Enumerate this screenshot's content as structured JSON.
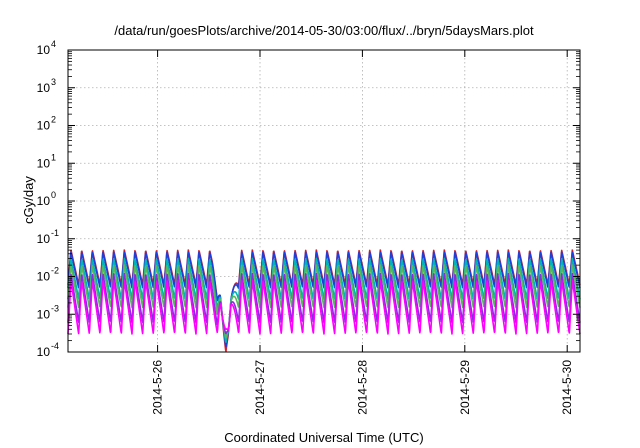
{
  "chart_data": {
    "type": "line",
    "title": "/data/run/goesPlots/archive/2014-05-30/03:00/flux/../bryn/5daysMars.plot",
    "xlabel": "Coordinated Universal Time (UTC)",
    "ylabel": "cGy/day",
    "yscale": "log",
    "ylim": [
      0.0001,
      10000
    ],
    "y_ticks": [
      {
        "value": 0.0001,
        "base": "10",
        "exp": "-4"
      },
      {
        "value": 0.001,
        "base": "10",
        "exp": "-3"
      },
      {
        "value": 0.01,
        "base": "10",
        "exp": "-2"
      },
      {
        "value": 0.1,
        "base": "10",
        "exp": "-1"
      },
      {
        "value": 1,
        "base": "10",
        "exp": "0"
      },
      {
        "value": 10,
        "base": "10",
        "exp": "1"
      },
      {
        "value": 100,
        "base": "10",
        "exp": "2"
      },
      {
        "value": 1000,
        "base": "10",
        "exp": "3"
      },
      {
        "value": 10000,
        "base": "10",
        "exp": "4"
      }
    ],
    "xlim": [
      "2014-05-25 03:00",
      "2014-05-30 03:00"
    ],
    "x_ticks": [
      "2014-5-26",
      "2014-5-27",
      "2014-5-28",
      "2014-5-29",
      "2014-5-30"
    ],
    "grid": true,
    "legend": "none",
    "sawtooth_period_hours": 2.5,
    "dip": {
      "time": "2014-05-26 16:00",
      "min_value": 0.0001
    },
    "series": [
      {
        "color": "#d4202a",
        "peak": 0.05,
        "trough": 0.006
      },
      {
        "color": "#1f3fdc",
        "peak": 0.045,
        "trough": 0.005
      },
      {
        "color": "#00b4b4",
        "peak": 0.03,
        "trough": 0.0025
      },
      {
        "color": "#5ab85a",
        "peak": 0.02,
        "trough": 0.0015
      },
      {
        "color": "#8a2be2",
        "peak": 0.012,
        "trough": 0.0006
      },
      {
        "color": "#ff00ff",
        "peak": 0.008,
        "trough": 0.0003
      }
    ]
  }
}
